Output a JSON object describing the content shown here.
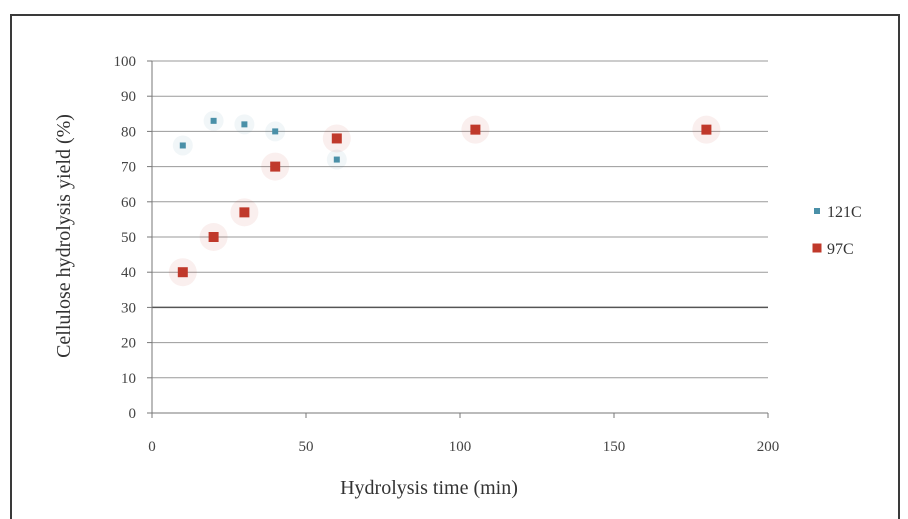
{
  "chart_data": {
    "type": "scatter",
    "title": "",
    "xlabel": "Hydrolysis time (min)",
    "ylabel": "Cellulose hydrolysis yield (%)",
    "xlim": [
      0,
      200
    ],
    "ylim": [
      0,
      100
    ],
    "xticks": [
      0,
      50,
      100,
      150,
      200
    ],
    "yticks": [
      0,
      10,
      20,
      30,
      40,
      50,
      60,
      70,
      80,
      90,
      100
    ],
    "grid": "horizontal",
    "legend_position": "right",
    "series": [
      {
        "name": "121C",
        "color": "#4a90a8",
        "marker": "small-square",
        "points": [
          [
            10,
            76
          ],
          [
            20,
            83
          ],
          [
            30,
            82
          ],
          [
            40,
            80
          ],
          [
            60,
            72
          ]
        ]
      },
      {
        "name": "97C",
        "color": "#c0392b",
        "marker": "square",
        "points": [
          [
            10,
            40
          ],
          [
            20,
            50
          ],
          [
            30,
            57
          ],
          [
            40,
            70
          ],
          [
            60,
            78
          ],
          [
            105,
            80.5
          ],
          [
            180,
            80.5
          ]
        ]
      }
    ]
  }
}
